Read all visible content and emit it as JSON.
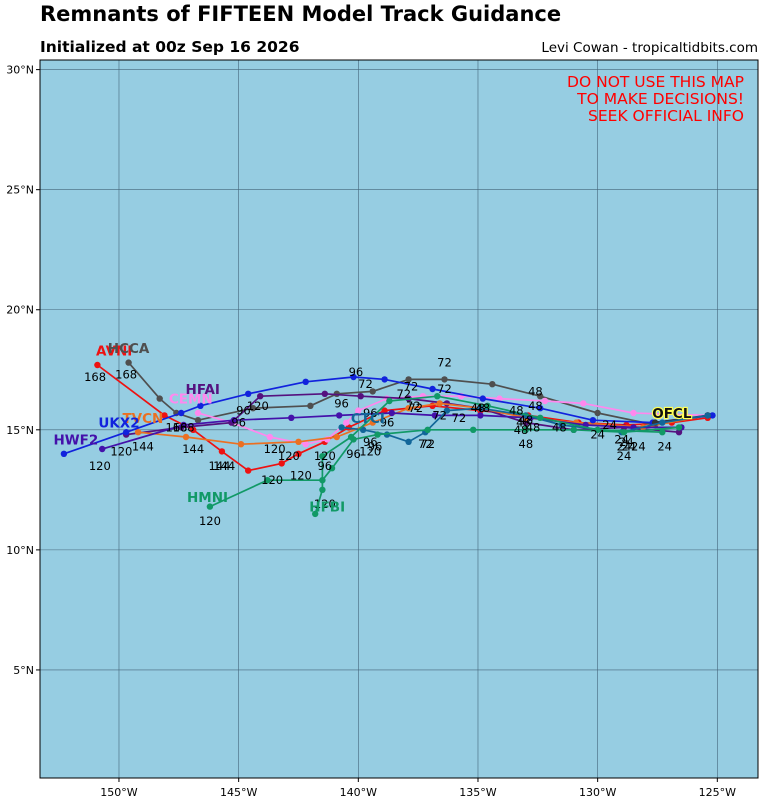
{
  "header": {
    "title": "Remnants of FIFTEEN Model Track Guidance",
    "subtitle": "Initialized at 00z Sep 16 2026",
    "credit": "Levi Cowan - tropicaltidbits.com"
  },
  "warning": [
    "DO NOT USE THIS MAP",
    "TO MAKE DECISIONS!",
    "SEEK OFFICIAL INFO"
  ],
  "colors": {
    "ocean": "#96cde2",
    "grid": "#44657a",
    "warning": "#ff0000"
  },
  "axes": {
    "lon_range": [
      -153.3,
      -123.3
    ],
    "lat_range": [
      0.5,
      30.4
    ],
    "lon_ticks": [
      {
        "value": -150,
        "label": "150°W"
      },
      {
        "value": -145,
        "label": "145°W"
      },
      {
        "value": -140,
        "label": "140°W"
      },
      {
        "value": -135,
        "label": "135°W"
      },
      {
        "value": -130,
        "label": "130°W"
      },
      {
        "value": -125,
        "label": "125°W"
      }
    ],
    "lat_ticks": [
      {
        "value": 5,
        "label": "5°N"
      },
      {
        "value": 10,
        "label": "10°N"
      },
      {
        "value": 15,
        "label": "15°N"
      },
      {
        "value": 20,
        "label": "20°N"
      },
      {
        "value": 25,
        "label": "25°N"
      },
      {
        "value": 30,
        "label": "30°N"
      }
    ]
  },
  "chart_data": {
    "type": "map",
    "grid": true,
    "tracks": [
      {
        "name": "AVNI",
        "color": "#ee1111",
        "points": [
          [
            -125.4,
            15.5
          ],
          [
            -126.9,
            15.3
          ],
          [
            -128.8,
            15.2
          ],
          [
            -130.8,
            15.3
          ],
          [
            -132.9,
            15.6
          ],
          [
            -134.9,
            15.8
          ],
          [
            -136.9,
            16.0
          ],
          [
            -138.9,
            15.8
          ],
          [
            -140.4,
            15.1
          ],
          [
            -141.4,
            14.5
          ],
          [
            -142.5,
            14.0
          ],
          [
            -143.2,
            13.6
          ],
          [
            -144.6,
            13.3
          ],
          [
            -145.7,
            14.1
          ],
          [
            -146.9,
            15.0
          ],
          [
            -148.1,
            15.6
          ],
          [
            -150.9,
            17.7
          ]
        ],
        "label_lonlat": [
          -150.2,
          18.3
        ],
        "hour_labels": [
          {
            "text": "168",
            "lon": -151.0,
            "lat": 17.2
          },
          {
            "text": "144",
            "lon": -145.8,
            "lat": 13.5
          },
          {
            "text": "120",
            "lon": -143.6,
            "lat": 12.9
          }
        ]
      },
      {
        "name": "HCCA",
        "color": "#4f4f4f",
        "points": [
          [
            -125.4,
            15.6
          ],
          [
            -127.6,
            15.2
          ],
          [
            -130.0,
            15.7
          ],
          [
            -132.4,
            16.4
          ],
          [
            -134.4,
            16.9
          ],
          [
            -136.4,
            17.1
          ],
          [
            -137.9,
            17.1
          ],
          [
            -139.4,
            16.6
          ],
          [
            -140.9,
            16.5
          ],
          [
            -142.0,
            16.0
          ],
          [
            -144.4,
            15.9
          ],
          [
            -146.7,
            15.4
          ],
          [
            -147.6,
            15.7
          ],
          [
            -148.3,
            16.3
          ],
          [
            -149.6,
            17.8
          ]
        ],
        "label_lonlat": [
          -149.6,
          18.4
        ],
        "hour_labels": [
          {
            "text": "168",
            "lon": -149.7,
            "lat": 17.3
          },
          {
            "text": "48",
            "lon": -132.6,
            "lat": 16.6
          }
        ]
      },
      {
        "name": "CEMN",
        "color": "#ff88ee",
        "points": [
          [
            -125.4,
            15.6
          ],
          [
            -128.5,
            15.7
          ],
          [
            -130.6,
            16.1
          ],
          [
            -132.2,
            16.2
          ],
          [
            -134.1,
            16.3
          ],
          [
            -135.7,
            16.4
          ],
          [
            -137.3,
            16.4
          ],
          [
            -138.8,
            16.3
          ],
          [
            -140.0,
            15.8
          ],
          [
            -140.5,
            15.3
          ],
          [
            -141.3,
            14.6
          ],
          [
            -142.2,
            14.4
          ],
          [
            -143.7,
            14.7
          ],
          [
            -145.3,
            15.3
          ],
          [
            -146.7,
            15.7
          ]
        ],
        "label_lonlat": [
          -147.0,
          16.3
        ],
        "hour_labels": []
      },
      {
        "name": "HFAI",
        "color": "#55117f",
        "points": [
          [
            -126.6,
            14.9
          ],
          [
            -128.9,
            15.1
          ],
          [
            -131.0,
            15.0
          ],
          [
            -133.0,
            15.3
          ],
          [
            -134.9,
            15.9
          ],
          [
            -136.3,
            16.1
          ],
          [
            -137.9,
            16.3
          ],
          [
            -139.9,
            16.4
          ],
          [
            -141.4,
            16.5
          ],
          [
            -144.1,
            16.4
          ],
          [
            -145.3,
            15.3
          ],
          [
            -147.4,
            15.1
          ],
          [
            -149.7,
            14.8
          ]
        ],
        "label_lonlat": [
          -146.5,
          16.7
        ],
        "hour_labels": [
          {
            "text": "96",
            "lon": -145.0,
            "lat": 15.3
          }
        ]
      },
      {
        "name": "TVCN",
        "color": "#eb7022",
        "points": [
          [
            -125.4,
            15.6
          ],
          [
            -128.1,
            15.1
          ],
          [
            -130.9,
            15.3
          ],
          [
            -133.0,
            15.5
          ],
          [
            -134.9,
            15.9
          ],
          [
            -136.6,
            16.1
          ],
          [
            -137.9,
            15.9
          ],
          [
            -139.4,
            15.3
          ],
          [
            -140.9,
            14.7
          ],
          [
            -142.5,
            14.5
          ],
          [
            -144.9,
            14.4
          ],
          [
            -147.2,
            14.7
          ],
          [
            -149.2,
            14.9
          ]
        ],
        "label_lonlat": [
          -149.0,
          15.5
        ],
        "hour_labels": [
          {
            "text": "144",
            "lon": -146.9,
            "lat": 14.2
          },
          {
            "text": "144",
            "lon": -145.6,
            "lat": 13.5
          }
        ]
      },
      {
        "name": "UKX2",
        "color": "#1122dd",
        "points": [
          [
            -125.2,
            15.6
          ],
          [
            -127.7,
            15.3
          ],
          [
            -130.2,
            15.4
          ],
          [
            -132.4,
            15.9
          ],
          [
            -134.8,
            16.3
          ],
          [
            -136.9,
            16.7
          ],
          [
            -138.9,
            17.1
          ],
          [
            -140.2,
            17.2
          ],
          [
            -142.2,
            17.0
          ],
          [
            -144.6,
            16.5
          ],
          [
            -146.6,
            16.0
          ],
          [
            -147.4,
            15.7
          ],
          [
            -149.7,
            14.9
          ],
          [
            -152.3,
            14.0
          ]
        ],
        "label_lonlat": [
          -150.0,
          15.3
        ],
        "hour_labels": [
          {
            "text": "144",
            "lon": -149.0,
            "lat": 14.3
          }
        ]
      },
      {
        "name": "HWF2",
        "color": "#4411aa",
        "points": [
          [
            -126.5,
            15.1
          ],
          [
            -128.5,
            15.1
          ],
          [
            -130.5,
            15.2
          ],
          [
            -132.8,
            15.5
          ],
          [
            -134.9,
            15.6
          ],
          [
            -136.8,
            15.6
          ],
          [
            -138.6,
            15.7
          ],
          [
            -140.8,
            15.6
          ],
          [
            -142.8,
            15.5
          ],
          [
            -145.2,
            15.4
          ],
          [
            -147.3,
            15.2
          ],
          [
            -150.7,
            14.2
          ]
        ],
        "label_lonlat": [
          -151.8,
          14.6
        ],
        "hour_labels": [
          {
            "text": "120",
            "lon": -150.8,
            "lat": 13.5
          },
          {
            "text": "120",
            "lon": -149.9,
            "lat": 14.1
          }
        ]
      },
      {
        "name": "OFCL",
        "color": "#333333",
        "points": [
          [
            -125.4,
            15.6
          ],
          [
            -127.6,
            15.3
          ]
        ],
        "label_lonlat": [
          -126.9,
          15.7
        ],
        "hour_labels": []
      },
      {
        "name": "CTCI",
        "color": "#116699",
        "points": [
          [
            -125.4,
            15.6
          ],
          [
            -127.3,
            15.3
          ],
          [
            -129.0,
            14.9
          ],
          [
            -131.5,
            15.2
          ],
          [
            -133.0,
            15.6
          ],
          [
            -134.9,
            15.9
          ],
          [
            -136.3,
            15.8
          ],
          [
            -137.2,
            14.9
          ],
          [
            -137.9,
            14.5
          ],
          [
            -138.8,
            14.8
          ],
          [
            -139.8,
            15.0
          ],
          [
            -140.7,
            15.1
          ]
        ],
        "label_lonlat": [
          -139.6,
          15.5
        ],
        "hour_labels": [
          {
            "text": "96",
            "lon": -138.8,
            "lat": 15.3
          },
          {
            "text": "96",
            "lon": -140.2,
            "lat": 14.0
          }
        ]
      },
      {
        "name": "HMNI",
        "color": "#119966",
        "points": [
          [
            -126.6,
            15.1
          ],
          [
            -128.9,
            14.9
          ],
          [
            -131.0,
            15.0
          ],
          [
            -133.0,
            15.0
          ],
          [
            -135.2,
            15.0
          ],
          [
            -137.1,
            15.0
          ],
          [
            -139.2,
            14.8
          ],
          [
            -140.2,
            14.6
          ],
          [
            -141.1,
            13.4
          ],
          [
            -141.5,
            12.9
          ],
          [
            -143.8,
            12.9
          ],
          [
            -146.2,
            11.8
          ]
        ],
        "label_lonlat": [
          -146.3,
          12.2
        ],
        "hour_labels": [
          {
            "text": "120",
            "lon": -146.2,
            "lat": 11.2
          },
          {
            "text": "96",
            "lon": -141.4,
            "lat": 13.5
          }
        ]
      },
      {
        "name": "HFBI",
        "color": "#119966",
        "points": [
          [
            -127.3,
            14.9
          ],
          [
            -130.0,
            15.0
          ],
          [
            -132.4,
            15.5
          ],
          [
            -134.6,
            16.0
          ],
          [
            -136.7,
            16.4
          ],
          [
            -138.7,
            16.2
          ],
          [
            -140.3,
            14.7
          ],
          [
            -141.5,
            13.9
          ],
          [
            -141.5,
            12.5
          ],
          [
            -141.8,
            11.5
          ]
        ],
        "label_lonlat": [
          -141.3,
          11.8
        ],
        "hour_labels": [
          {
            "text": "120",
            "lon": -141.4,
            "lat": 11.9
          }
        ]
      }
    ],
    "extra_hour_labels": [
      {
        "text": "120",
        "lon": -144.2,
        "lat": 16.0
      },
      {
        "text": "120",
        "lon": -143.5,
        "lat": 14.2
      },
      {
        "text": "120",
        "lon": -142.9,
        "lat": 13.9
      },
      {
        "text": "120",
        "lon": -142.4,
        "lat": 13.1
      },
      {
        "text": "120",
        "lon": -141.4,
        "lat": 13.9
      },
      {
        "text": "120",
        "lon": -139.5,
        "lat": 14.1
      },
      {
        "text": "96",
        "lon": -140.1,
        "lat": 17.4
      },
      {
        "text": "96",
        "lon": -140.7,
        "lat": 16.1
      },
      {
        "text": "96",
        "lon": -139.5,
        "lat": 15.7
      },
      {
        "text": "96",
        "lon": -139.5,
        "lat": 14.5
      },
      {
        "text": "96",
        "lon": -139.3,
        "lat": 14.3
      },
      {
        "text": "96",
        "lon": -144.8,
        "lat": 15.8
      },
      {
        "text": "168",
        "lon": -147.3,
        "lat": 15.1
      },
      {
        "text": "168",
        "lon": -147.6,
        "lat": 15.1
      },
      {
        "text": "72",
        "lon": -136.4,
        "lat": 17.8
      },
      {
        "text": "72",
        "lon": -139.7,
        "lat": 16.9
      },
      {
        "text": "72",
        "lon": -138.1,
        "lat": 16.5
      },
      {
        "text": "72",
        "lon": -137.8,
        "lat": 16.8
      },
      {
        "text": "72",
        "lon": -136.4,
        "lat": 16.7
      },
      {
        "text": "72",
        "lon": -137.7,
        "lat": 16.0
      },
      {
        "text": "72",
        "lon": -137.6,
        "lat": 15.9
      },
      {
        "text": "72",
        "lon": -136.6,
        "lat": 15.6
      },
      {
        "text": "72",
        "lon": -135.8,
        "lat": 15.5
      },
      {
        "text": "72",
        "lon": -137.2,
        "lat": 14.4
      },
      {
        "text": "72",
        "lon": -137.1,
        "lat": 14.4
      },
      {
        "text": "48",
        "lon": -134.8,
        "lat": 15.9
      },
      {
        "text": "48",
        "lon": -133.4,
        "lat": 15.8
      },
      {
        "text": "48",
        "lon": -132.6,
        "lat": 16.0
      },
      {
        "text": "48",
        "lon": -133.0,
        "lat": 15.4
      },
      {
        "text": "48",
        "lon": -133.1,
        "lat": 15.3
      },
      {
        "text": "48",
        "lon": -132.7,
        "lat": 15.1
      },
      {
        "text": "48",
        "lon": -131.6,
        "lat": 15.1
      },
      {
        "text": "48",
        "lon": -133.2,
        "lat": 15.0
      },
      {
        "text": "48",
        "lon": -133.0,
        "lat": 14.4
      },
      {
        "text": "48",
        "lon": -135.0,
        "lat": 15.9
      },
      {
        "text": "24",
        "lon": -129.5,
        "lat": 15.2
      },
      {
        "text": "24",
        "lon": -130.0,
        "lat": 14.8
      },
      {
        "text": "24",
        "lon": -129.0,
        "lat": 14.6
      },
      {
        "text": "24",
        "lon": -128.8,
        "lat": 14.5
      },
      {
        "text": "24",
        "lon": -128.9,
        "lat": 14.3
      },
      {
        "text": "24",
        "lon": -128.7,
        "lat": 14.3
      },
      {
        "text": "24",
        "lon": -128.3,
        "lat": 14.3
      },
      {
        "text": "24",
        "lon": -127.2,
        "lat": 14.3
      },
      {
        "text": "24",
        "lon": -128.9,
        "lat": 13.9
      }
    ]
  }
}
